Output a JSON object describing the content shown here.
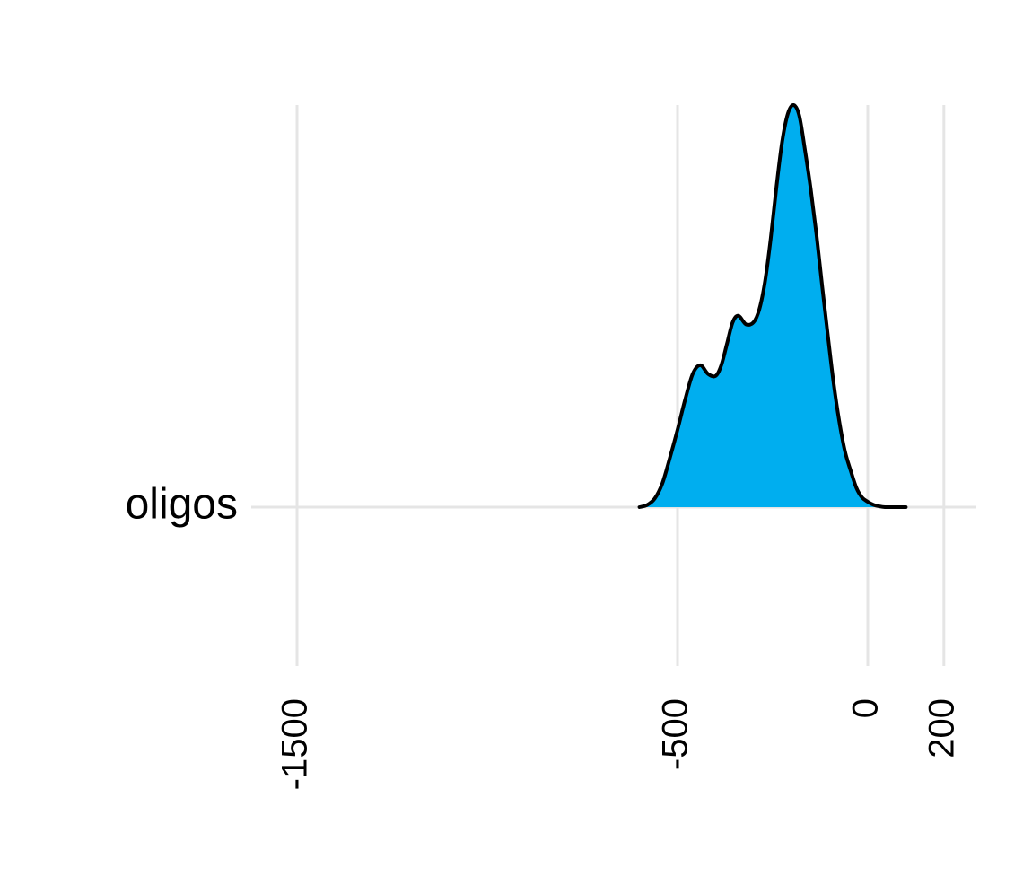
{
  "chart_data": {
    "type": "area",
    "title": "",
    "xlabel": "",
    "ylabel": "",
    "xlim": [
      -1600,
      250
    ],
    "x_ticks": [
      -1500,
      -500,
      0,
      200
    ],
    "x_tick_labels": [
      "-1500",
      "-500",
      "0",
      "200"
    ],
    "categories": [
      "oligos"
    ],
    "grid": true,
    "fill_color": "#00AEEF",
    "line_color": "#000000",
    "series": [
      {
        "category": "oligos",
        "x": [
          -600,
          -580,
          -560,
          -540,
          -520,
          -500,
          -480,
          -460,
          -440,
          -420,
          -400,
          -385,
          -370,
          -355,
          -340,
          -320,
          -300,
          -285,
          -270,
          -255,
          -240,
          -225,
          -210,
          -195,
          -180,
          -165,
          -150,
          -135,
          -120,
          -105,
          -90,
          -75,
          -60,
          -45,
          -30,
          -15,
          0,
          15,
          30,
          45,
          60,
          80,
          100
        ],
        "density": [
          0.0,
          0.01,
          0.04,
          0.11,
          0.23,
          0.36,
          0.5,
          0.62,
          0.66,
          0.62,
          0.61,
          0.66,
          0.76,
          0.86,
          0.89,
          0.85,
          0.86,
          0.92,
          1.05,
          1.25,
          1.49,
          1.7,
          1.83,
          1.87,
          1.82,
          1.66,
          1.48,
          1.27,
          1.03,
          0.8,
          0.58,
          0.4,
          0.26,
          0.17,
          0.09,
          0.045,
          0.025,
          0.011,
          0.004,
          0.0,
          0.0,
          0.0,
          0.0
        ]
      }
    ]
  }
}
